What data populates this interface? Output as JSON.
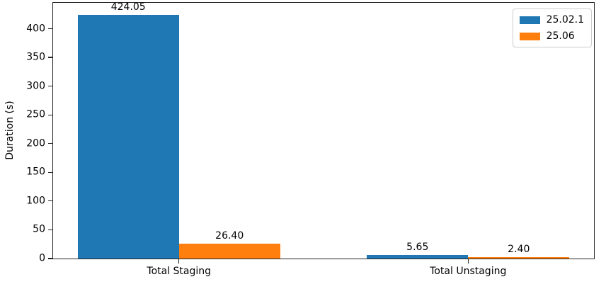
{
  "chart_data": {
    "type": "bar",
    "categories": [
      "Total Staging",
      "Total Unstaging"
    ],
    "series": [
      {
        "name": "25.02.1",
        "color": "#1f77b4",
        "values": [
          424.05,
          5.65
        ],
        "labels": [
          "424.05",
          "5.65"
        ]
      },
      {
        "name": "25.06",
        "color": "#ff7f0e",
        "values": [
          26.4,
          2.4
        ],
        "labels": [
          "26.40",
          "2.40"
        ]
      }
    ],
    "title": "",
    "xlabel": "",
    "ylabel": "Duration (s)",
    "yticks": [
      0,
      50,
      100,
      150,
      200,
      250,
      300,
      350,
      400
    ],
    "ylim": [
      0,
      445
    ],
    "xlim": [
      -0.435,
      1.435
    ],
    "bar_width": 0.35,
    "legend_position": "upper-right",
    "grid": false,
    "spine_color": "#262626"
  }
}
